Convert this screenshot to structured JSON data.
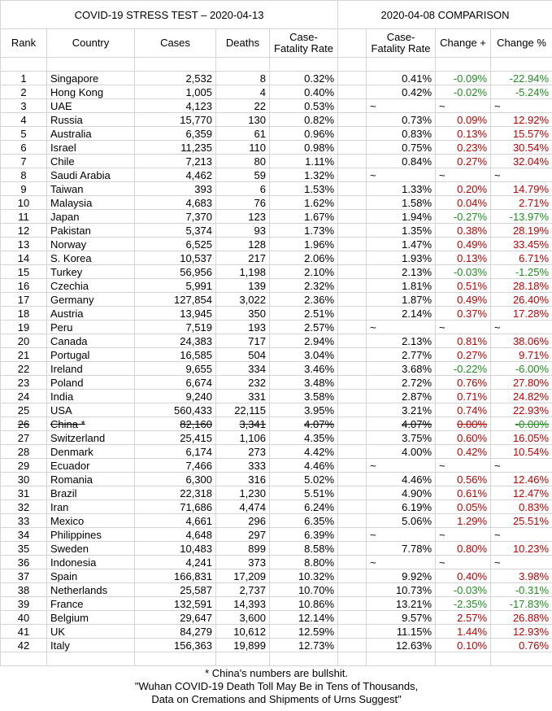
{
  "header": {
    "title": "COVID-19 STRESS TEST – 2020-04-13",
    "comparison_title": "2020-04-08 COMPARISON"
  },
  "table": {
    "columns": [
      "Rank",
      "Country",
      "Cases",
      "Deaths",
      "Case-Fatality Rate",
      "Case-Fatality Rate",
      "Change +",
      "Change %"
    ],
    "rows": [
      {
        "cells": [
          "1",
          "Singapore",
          "2,532",
          "8",
          "0.32%",
          "0.41%",
          "-0.09%",
          "-22.94%"
        ]
      },
      {
        "cells": [
          "2",
          "Hong Kong",
          "1,005",
          "4",
          "0.40%",
          "0.42%",
          "-0.02%",
          "-5.24%"
        ]
      },
      {
        "cells": [
          "3",
          "UAE",
          "4,123",
          "22",
          "0.53%",
          "~",
          "~",
          "~"
        ]
      },
      {
        "cells": [
          "4",
          "Russia",
          "15,770",
          "130",
          "0.82%",
          "0.73%",
          "0.09%",
          "12.92%"
        ]
      },
      {
        "cells": [
          "5",
          "Australia",
          "6,359",
          "61",
          "0.96%",
          "0.83%",
          "0.13%",
          "15.57%"
        ]
      },
      {
        "cells": [
          "6",
          "Israel",
          "11,235",
          "110",
          "0.98%",
          "0.75%",
          "0.23%",
          "30.54%"
        ]
      },
      {
        "cells": [
          "7",
          "Chile",
          "7,213",
          "80",
          "1.11%",
          "0.84%",
          "0.27%",
          "32.04%"
        ]
      },
      {
        "cells": [
          "8",
          "Saudi Arabia",
          "4,462",
          "59",
          "1.32%",
          "~",
          "~",
          "~"
        ]
      },
      {
        "cells": [
          "9",
          "Taiwan",
          "393",
          "6",
          "1.53%",
          "1.33%",
          "0.20%",
          "14.79%"
        ]
      },
      {
        "cells": [
          "10",
          "Malaysia",
          "4,683",
          "76",
          "1.62%",
          "1.58%",
          "0.04%",
          "2.71%"
        ]
      },
      {
        "cells": [
          "11",
          "Japan",
          "7,370",
          "123",
          "1.67%",
          "1.94%",
          "-0.27%",
          "-13.97%"
        ]
      },
      {
        "cells": [
          "12",
          "Pakistan",
          "5,374",
          "93",
          "1.73%",
          "1.35%",
          "0.38%",
          "28.19%"
        ]
      },
      {
        "cells": [
          "13",
          "Norway",
          "6,525",
          "128",
          "1.96%",
          "1.47%",
          "0.49%",
          "33.45%"
        ]
      },
      {
        "cells": [
          "14",
          "S. Korea",
          "10,537",
          "217",
          "2.06%",
          "1.93%",
          "0.13%",
          "6.71%"
        ]
      },
      {
        "cells": [
          "15",
          "Turkey",
          "56,956",
          "1,198",
          "2.10%",
          "2.13%",
          "-0.03%",
          "-1.25%"
        ]
      },
      {
        "cells": [
          "16",
          "Czechia",
          "5,991",
          "139",
          "2.32%",
          "1.81%",
          "0.51%",
          "28.18%"
        ]
      },
      {
        "cells": [
          "17",
          "Germany",
          "127,854",
          "3,022",
          "2.36%",
          "1.87%",
          "0.49%",
          "26.40%"
        ]
      },
      {
        "cells": [
          "18",
          "Austria",
          "13,945",
          "350",
          "2.51%",
          "2.14%",
          "0.37%",
          "17.28%"
        ]
      },
      {
        "cells": [
          "19",
          "Peru",
          "7,519",
          "193",
          "2.57%",
          "~",
          "~",
          "~"
        ]
      },
      {
        "cells": [
          "20",
          "Canada",
          "24,383",
          "717",
          "2.94%",
          "2.13%",
          "0.81%",
          "38.06%"
        ]
      },
      {
        "cells": [
          "21",
          "Portugal",
          "16,585",
          "504",
          "3.04%",
          "2.77%",
          "0.27%",
          "9.71%"
        ]
      },
      {
        "cells": [
          "22",
          "Ireland",
          "9,655",
          "334",
          "3.46%",
          "3.68%",
          "-0.22%",
          "-6.00%"
        ]
      },
      {
        "cells": [
          "23",
          "Poland",
          "6,674",
          "232",
          "3.48%",
          "2.72%",
          "0.76%",
          "27.80%"
        ]
      },
      {
        "cells": [
          "24",
          "India",
          "9,240",
          "331",
          "3.58%",
          "2.87%",
          "0.71%",
          "24.82%"
        ]
      },
      {
        "cells": [
          "25",
          "USA",
          "560,433",
          "22,115",
          "3.95%",
          "3.21%",
          "0.74%",
          "22.93%"
        ]
      },
      {
        "cells": [
          "26",
          "China *",
          "82,160",
          "3,341",
          "4.07%",
          "4.07%",
          "0.00%",
          "-0.00%"
        ],
        "strikethrough": true
      },
      {
        "cells": [
          "27",
          "Switzerland",
          "25,415",
          "1,106",
          "4.35%",
          "3.75%",
          "0.60%",
          "16.05%"
        ]
      },
      {
        "cells": [
          "28",
          "Denmark",
          "6,174",
          "273",
          "4.42%",
          "4.00%",
          "0.42%",
          "10.54%"
        ]
      },
      {
        "cells": [
          "29",
          "Ecuador",
          "7,466",
          "333",
          "4.46%",
          "~",
          "~",
          "~"
        ]
      },
      {
        "cells": [
          "30",
          "Romania",
          "6,300",
          "316",
          "5.02%",
          "4.46%",
          "0.56%",
          "12.46%"
        ]
      },
      {
        "cells": [
          "31",
          "Brazil",
          "22,318",
          "1,230",
          "5.51%",
          "4.90%",
          "0.61%",
          "12.47%"
        ]
      },
      {
        "cells": [
          "32",
          "Iran",
          "71,686",
          "4,474",
          "6.24%",
          "6.19%",
          "0.05%",
          "0.83%"
        ]
      },
      {
        "cells": [
          "33",
          "Mexico",
          "4,661",
          "296",
          "6.35%",
          "5.06%",
          "1.29%",
          "25.51%"
        ]
      },
      {
        "cells": [
          "34",
          "Philippines",
          "4,648",
          "297",
          "6.39%",
          "~",
          "~",
          "~"
        ]
      },
      {
        "cells": [
          "35",
          "Sweden",
          "10,483",
          "899",
          "8.58%",
          "7.78%",
          "0.80%",
          "10.23%"
        ]
      },
      {
        "cells": [
          "36",
          "Indonesia",
          "4,241",
          "373",
          "8.80%",
          "~",
          "~",
          "~"
        ]
      },
      {
        "cells": [
          "37",
          "Spain",
          "166,831",
          "17,209",
          "10.32%",
          "9.92%",
          "0.40%",
          "3.98%"
        ]
      },
      {
        "cells": [
          "38",
          "Netherlands",
          "25,587",
          "2,737",
          "10.70%",
          "10.73%",
          "-0.03%",
          "-0.31%"
        ]
      },
      {
        "cells": [
          "39",
          "France",
          "132,591",
          "14,393",
          "10.86%",
          "13.21%",
          "-2.35%",
          "-17.83%"
        ]
      },
      {
        "cells": [
          "40",
          "Belgium",
          "29,647",
          "3,600",
          "12.14%",
          "9.57%",
          "2.57%",
          "26.88%"
        ]
      },
      {
        "cells": [
          "41",
          "UK",
          "84,279",
          "10,612",
          "12.59%",
          "11.15%",
          "1.44%",
          "12.93%"
        ]
      },
      {
        "cells": [
          "42",
          "Italy",
          "156,363",
          "19,899",
          "12.73%",
          "12.63%",
          "0.10%",
          "0.76%"
        ]
      }
    ]
  },
  "footer": {
    "lines": [
      "* China's numbers are bullshit.",
      "\"Wuhan COVID-19 Death Toll May Be in Tens of Thousands,",
      "Data on Cremations and Shipments of Urns Suggest\""
    ]
  }
}
